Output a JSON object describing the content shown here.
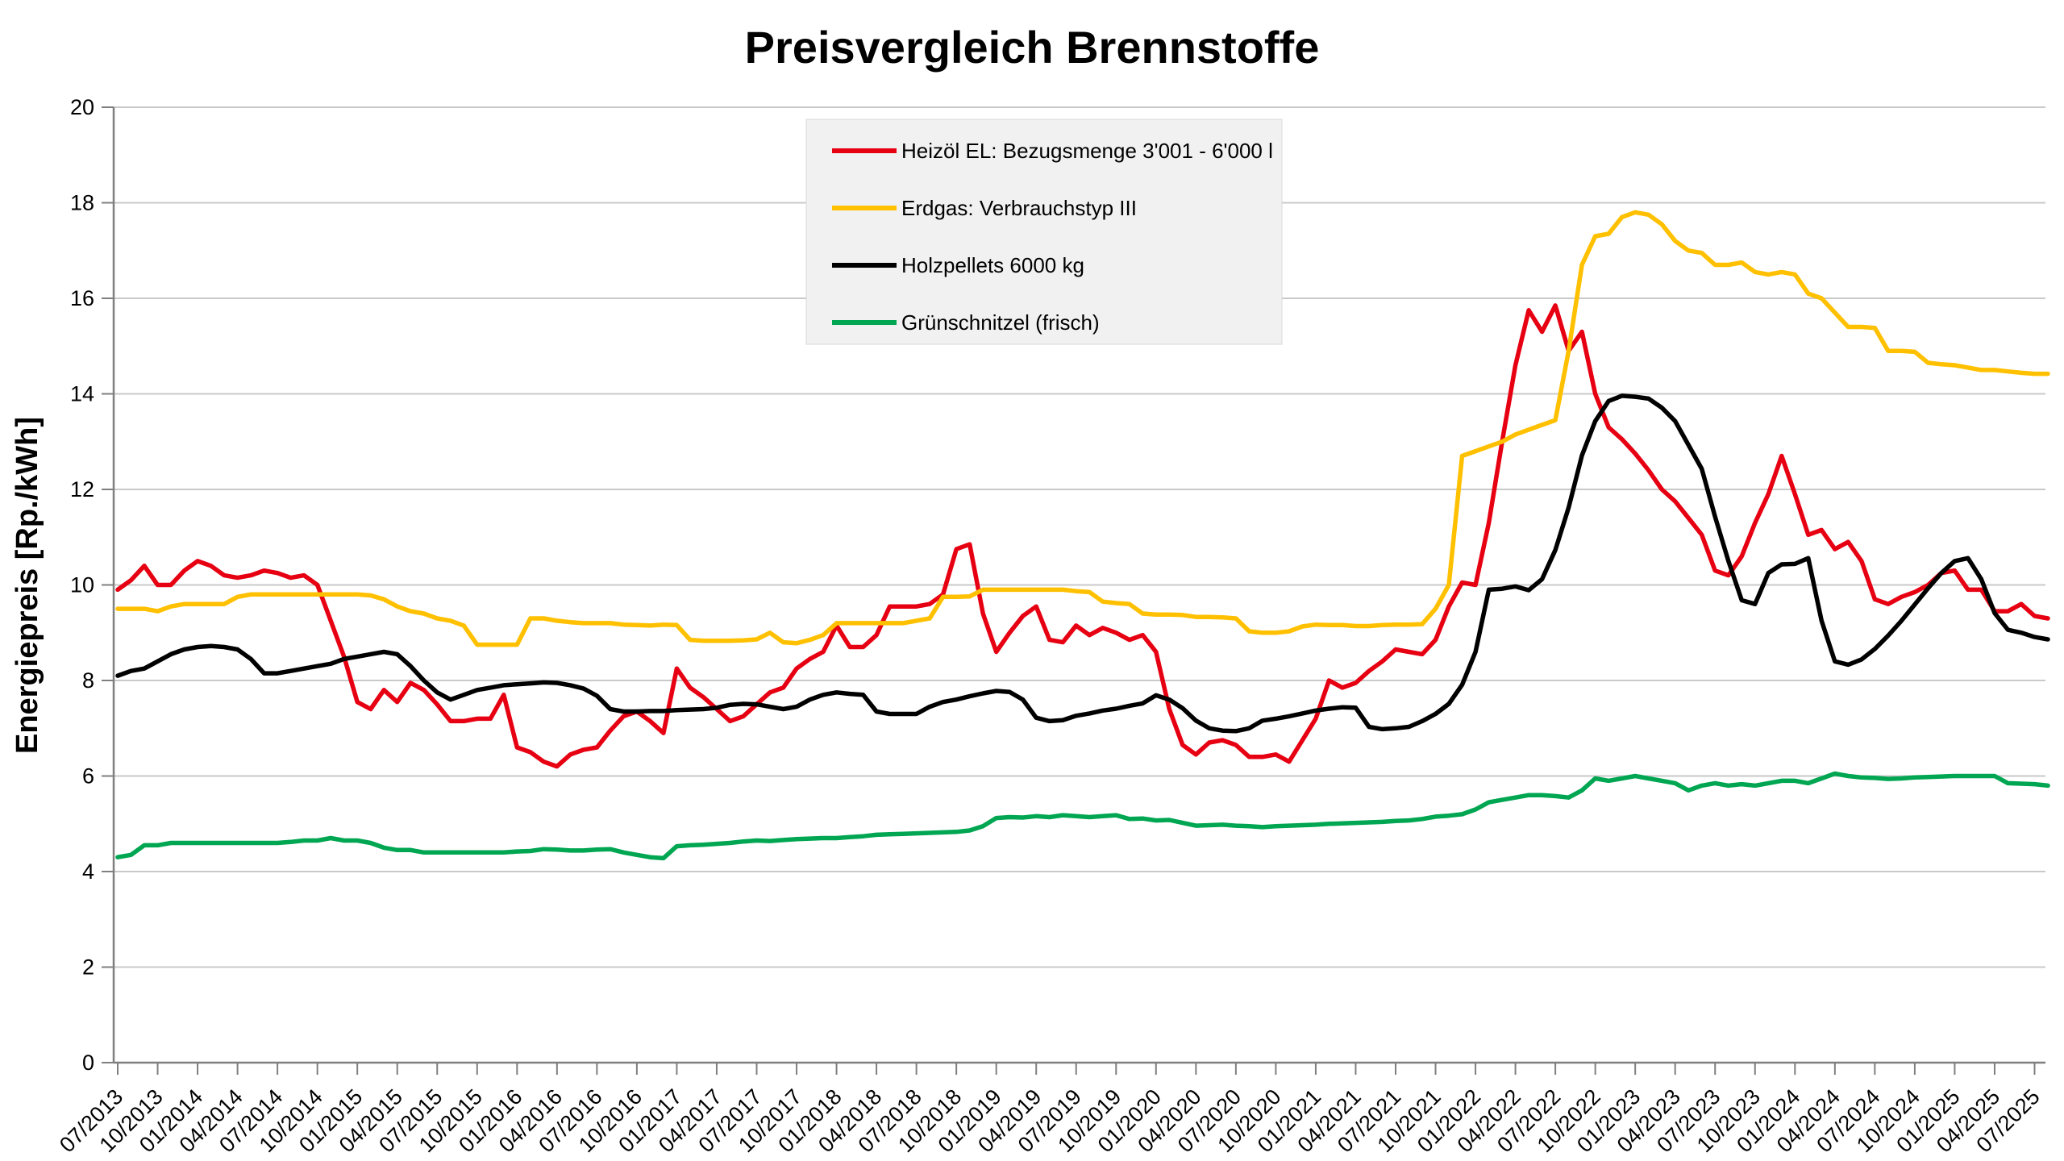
{
  "chart_data": {
    "type": "line",
    "title": "Preisvergleich Brennstoffe",
    "ylabel": "Energiepreis [Rp./kWh]",
    "xlabel": "",
    "ylim": [
      0,
      20
    ],
    "ytick_step": 2,
    "grid": true,
    "legend_position": "inside-top-center",
    "x_start": "07/2013",
    "x_end": "08/2025",
    "x_interval": "monthly",
    "x_tick_every_months": 3,
    "x_tick_labels": [
      "07/2013",
      "10/2013",
      "01/2014",
      "04/2014",
      "07/2014",
      "10/2014",
      "01/2015",
      "04/2015",
      "07/2015",
      "10/2015",
      "01/2016",
      "04/2016",
      "07/2016",
      "10/2016",
      "01/2017",
      "04/2017",
      "07/2017",
      "10/2017",
      "01/2018",
      "04/2018",
      "07/2018",
      "10/2018",
      "01/2019",
      "04/2019",
      "07/2019",
      "10/2019",
      "01/2020",
      "04/2020",
      "07/2020",
      "10/2020",
      "01/2021",
      "04/2021",
      "07/2021",
      "10/2021",
      "01/2022",
      "04/2022",
      "07/2022",
      "10/2022",
      "01/2023",
      "04/2023",
      "07/2023",
      "10/2023",
      "01/2024",
      "04/2024",
      "07/2024",
      "10/2024",
      "01/2025",
      "04/2025",
      "07/2025"
    ],
    "colors": {
      "grid": "#c9c9c9",
      "axis": "#7f7f7f",
      "text": "#000000",
      "legend_bg": "#f1f1f1",
      "legend_border": "#d8d8d8"
    },
    "series": [
      {
        "name": "Heizöl EL: Bezugsmenge 3'001 - 6'000 l",
        "color": "#e60012",
        "values": [
          9.9,
          10.1,
          10.4,
          10.0,
          10.0,
          10.3,
          10.5,
          10.4,
          10.2,
          10.15,
          10.2,
          10.3,
          10.25,
          10.15,
          10.2,
          10.0,
          9.25,
          8.5,
          7.55,
          7.4,
          7.8,
          7.55,
          7.95,
          7.8,
          7.5,
          7.15,
          7.15,
          7.2,
          7.2,
          7.7,
          6.6,
          6.5,
          6.3,
          6.2,
          6.45,
          6.55,
          6.6,
          6.95,
          7.25,
          7.35,
          7.15,
          6.9,
          8.25,
          7.85,
          7.65,
          7.4,
          7.15,
          7.25,
          7.5,
          7.75,
          7.85,
          8.25,
          8.45,
          8.6,
          9.15,
          8.7,
          8.7,
          8.95,
          9.55,
          9.55,
          9.55,
          9.6,
          9.8,
          10.75,
          10.85,
          9.4,
          8.6,
          9.0,
          9.35,
          9.55,
          8.85,
          8.8,
          9.15,
          8.95,
          9.1,
          9.0,
          8.85,
          8.95,
          8.6,
          7.4,
          6.65,
          6.45,
          6.7,
          6.75,
          6.65,
          6.4,
          6.4,
          6.45,
          6.3,
          6.75,
          7.2,
          8.0,
          7.85,
          7.95,
          8.2,
          8.4,
          8.65,
          8.6,
          8.55,
          8.85,
          9.55,
          10.05,
          10.0,
          11.3,
          13.0,
          14.6,
          15.75,
          15.3,
          15.85,
          14.9,
          15.3,
          14.0,
          13.3,
          13.05,
          12.75,
          12.4,
          12.0,
          11.75,
          11.4,
          11.05,
          10.3,
          10.2,
          10.6,
          11.3,
          11.9,
          12.7,
          11.9,
          11.05,
          11.15,
          10.75,
          10.9,
          10.5,
          9.7,
          9.6,
          9.75,
          9.85,
          10.0,
          10.25,
          10.3,
          9.9,
          9.9,
          9.45,
          9.45,
          9.6,
          9.35,
          9.3
        ]
      },
      {
        "name": "Erdgas: Verbrauchstyp III",
        "color": "#ffc000",
        "values": [
          9.5,
          9.5,
          9.5,
          9.45,
          9.55,
          9.6,
          9.6,
          9.6,
          9.6,
          9.75,
          9.8,
          9.8,
          9.8,
          9.8,
          9.8,
          9.8,
          9.8,
          9.8,
          9.8,
          9.78,
          9.7,
          9.55,
          9.45,
          9.4,
          9.3,
          9.25,
          9.15,
          8.75,
          8.75,
          8.75,
          8.75,
          9.3,
          9.3,
          9.25,
          9.22,
          9.2,
          9.2,
          9.2,
          9.17,
          9.16,
          9.15,
          9.17,
          9.16,
          8.85,
          8.83,
          8.83,
          8.83,
          8.84,
          8.86,
          9.0,
          8.8,
          8.78,
          8.85,
          8.95,
          9.2,
          9.2,
          9.2,
          9.2,
          9.2,
          9.2,
          9.25,
          9.3,
          9.75,
          9.75,
          9.76,
          9.9,
          9.9,
          9.9,
          9.9,
          9.9,
          9.9,
          9.9,
          9.87,
          9.85,
          9.65,
          9.62,
          9.6,
          9.4,
          9.38,
          9.38,
          9.37,
          9.33,
          9.33,
          9.32,
          9.3,
          9.03,
          9.0,
          9.0,
          9.03,
          9.13,
          9.17,
          9.16,
          9.16,
          9.14,
          9.14,
          9.16,
          9.17,
          9.17,
          9.18,
          9.5,
          10.0,
          12.7,
          12.8,
          12.9,
          13.0,
          13.15,
          13.25,
          13.35,
          13.45,
          14.9,
          16.7,
          17.3,
          17.35,
          17.7,
          17.8,
          17.75,
          17.55,
          17.2,
          17.0,
          16.95,
          16.7,
          16.7,
          16.75,
          16.55,
          16.5,
          16.55,
          16.5,
          16.1,
          16.0,
          15.7,
          15.4,
          15.4,
          15.38,
          14.9,
          14.9,
          14.88,
          14.65,
          14.62,
          14.6,
          14.55,
          14.5,
          14.5,
          14.47,
          14.44,
          14.42,
          14.42
        ]
      },
      {
        "name": "Holzpellets 6000 kg",
        "color": "#000000",
        "values": [
          8.1,
          8.2,
          8.25,
          8.4,
          8.55,
          8.65,
          8.7,
          8.72,
          8.7,
          8.65,
          8.45,
          8.15,
          8.15,
          8.2,
          8.25,
          8.3,
          8.35,
          8.45,
          8.5,
          8.55,
          8.6,
          8.55,
          8.3,
          8.0,
          7.75,
          7.6,
          7.7,
          7.8,
          7.85,
          7.9,
          7.92,
          7.94,
          7.96,
          7.95,
          7.9,
          7.83,
          7.68,
          7.4,
          7.35,
          7.35,
          7.36,
          7.36,
          7.38,
          7.39,
          7.4,
          7.43,
          7.49,
          7.51,
          7.5,
          7.45,
          7.4,
          7.45,
          7.6,
          7.7,
          7.75,
          7.72,
          7.7,
          7.35,
          7.3,
          7.3,
          7.3,
          7.45,
          7.55,
          7.6,
          7.67,
          7.73,
          7.78,
          7.76,
          7.6,
          7.22,
          7.15,
          7.17,
          7.26,
          7.31,
          7.37,
          7.41,
          7.47,
          7.52,
          7.69,
          7.6,
          7.42,
          7.16,
          7.0,
          6.95,
          6.94,
          7.0,
          7.16,
          7.2,
          7.25,
          7.31,
          7.37,
          7.41,
          7.44,
          7.43,
          7.03,
          6.98,
          7.0,
          7.03,
          7.15,
          7.3,
          7.51,
          7.91,
          8.6,
          9.9,
          9.92,
          9.97,
          9.89,
          10.12,
          10.73,
          11.62,
          12.71,
          13.43,
          13.85,
          13.96,
          13.94,
          13.9,
          13.71,
          13.43,
          12.93,
          12.43,
          11.43,
          10.5,
          9.68,
          9.6,
          10.25,
          10.43,
          10.44,
          10.56,
          9.25,
          8.4,
          8.33,
          8.44,
          8.66,
          8.94,
          9.25,
          9.59,
          9.93,
          10.25,
          10.5,
          10.56,
          10.12,
          9.41,
          9.06,
          9.0,
          8.91,
          8.86
        ]
      },
      {
        "name": "Grünschnitzel (frisch)",
        "color": "#00a651",
        "values": [
          4.3,
          4.35,
          4.55,
          4.55,
          4.6,
          4.6,
          4.6,
          4.6,
          4.6,
          4.6,
          4.6,
          4.6,
          4.6,
          4.62,
          4.65,
          4.65,
          4.7,
          4.65,
          4.65,
          4.6,
          4.5,
          4.45,
          4.45,
          4.4,
          4.4,
          4.4,
          4.4,
          4.4,
          4.4,
          4.4,
          4.42,
          4.43,
          4.47,
          4.46,
          4.44,
          4.44,
          4.46,
          4.47,
          4.4,
          4.35,
          4.3,
          4.28,
          4.53,
          4.55,
          4.56,
          4.58,
          4.6,
          4.63,
          4.65,
          4.64,
          4.66,
          4.68,
          4.69,
          4.7,
          4.7,
          4.72,
          4.74,
          4.77,
          4.78,
          4.79,
          4.8,
          4.81,
          4.82,
          4.83,
          4.86,
          4.95,
          5.12,
          5.14,
          5.13,
          5.16,
          5.14,
          5.18,
          5.16,
          5.14,
          5.16,
          5.18,
          5.1,
          5.11,
          5.07,
          5.08,
          5.02,
          4.96,
          4.97,
          4.98,
          4.96,
          4.95,
          4.93,
          4.95,
          4.96,
          4.97,
          4.98,
          5.0,
          5.01,
          5.02,
          5.03,
          5.04,
          5.06,
          5.07,
          5.1,
          5.15,
          5.17,
          5.2,
          5.3,
          5.45,
          5.5,
          5.55,
          5.6,
          5.6,
          5.58,
          5.55,
          5.7,
          5.95,
          5.9,
          5.95,
          6.0,
          5.95,
          5.9,
          5.85,
          5.7,
          5.8,
          5.85,
          5.8,
          5.83,
          5.8,
          5.85,
          5.9,
          5.9,
          5.85,
          5.95,
          6.05,
          6.0,
          5.97,
          5.96,
          5.94,
          5.95,
          5.97,
          5.98,
          5.99,
          6.0,
          6.0,
          6.0,
          6.0,
          5.85,
          5.84,
          5.83,
          5.8
        ]
      }
    ]
  }
}
